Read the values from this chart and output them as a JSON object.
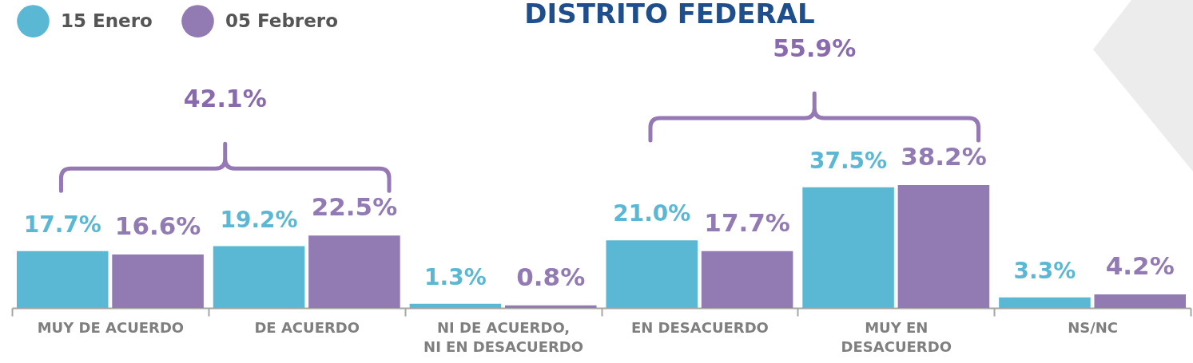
{
  "chart_data": {
    "type": "bar",
    "title": "DISTRITO FEDERAL",
    "categories": [
      "MUY DE ACUERDO",
      "DE ACUERDO",
      "NI DE ACUERDO, NI EN DESACUERDO",
      "EN DESACUERDO",
      "MUY EN DESACUERDO",
      "NS/NC"
    ],
    "series": [
      {
        "name": "15 Enero",
        "color": "#5bb8d4",
        "values": [
          17.7,
          19.2,
          1.3,
          21.0,
          37.5,
          3.3
        ],
        "value_labels": [
          "17.7%",
          "19.2%",
          "1.3%",
          "21.0%",
          "37.5%",
          "3.3%"
        ]
      },
      {
        "name": "05 Febrero",
        "color": "#927ab3",
        "values": [
          16.6,
          22.5,
          0.8,
          17.7,
          38.2,
          4.2
        ],
        "value_labels": [
          "16.6%",
          "22.5%",
          "0.8%",
          "17.7%",
          "38.2%",
          "4.2%"
        ]
      }
    ],
    "annotations": [
      "42.1%",
      "55.9%"
    ],
    "legend": "top left",
    "tick_labels": "x"
  }
}
